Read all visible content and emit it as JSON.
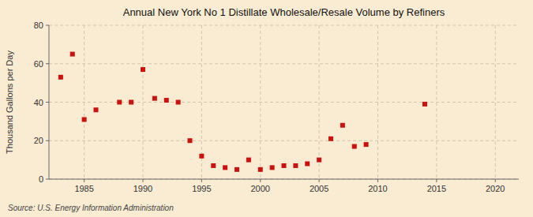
{
  "chart_data": {
    "type": "scatter",
    "title": "Annual New York No 1 Distillate Wholesale/Resale Volume by Refiners",
    "ylabel": "Thousand Gallons per Day",
    "source": "Source: U.S. Energy Information Administration",
    "x": [
      1983,
      1984,
      1985,
      1986,
      1988,
      1989,
      1990,
      1991,
      1992,
      1993,
      1994,
      1995,
      1996,
      1997,
      1998,
      1999,
      2000,
      2001,
      2002,
      2003,
      2004,
      2005,
      2006,
      2007,
      2008,
      2009,
      2014
    ],
    "values": [
      53,
      65,
      31,
      36,
      40,
      40,
      57,
      42,
      41,
      40,
      20,
      12,
      7,
      6,
      5,
      10,
      5,
      6,
      7,
      7,
      8,
      10,
      21,
      28,
      17,
      18,
      39
    ],
    "color": "#cc1111",
    "marker": "square",
    "xlim": [
      1982,
      2022
    ],
    "ylim": [
      0,
      80
    ],
    "xticks": [
      1985,
      1990,
      1995,
      2000,
      2005,
      2010,
      2015,
      2020
    ],
    "yticks": [
      0,
      20,
      40,
      60,
      80
    ],
    "grid": true
  }
}
